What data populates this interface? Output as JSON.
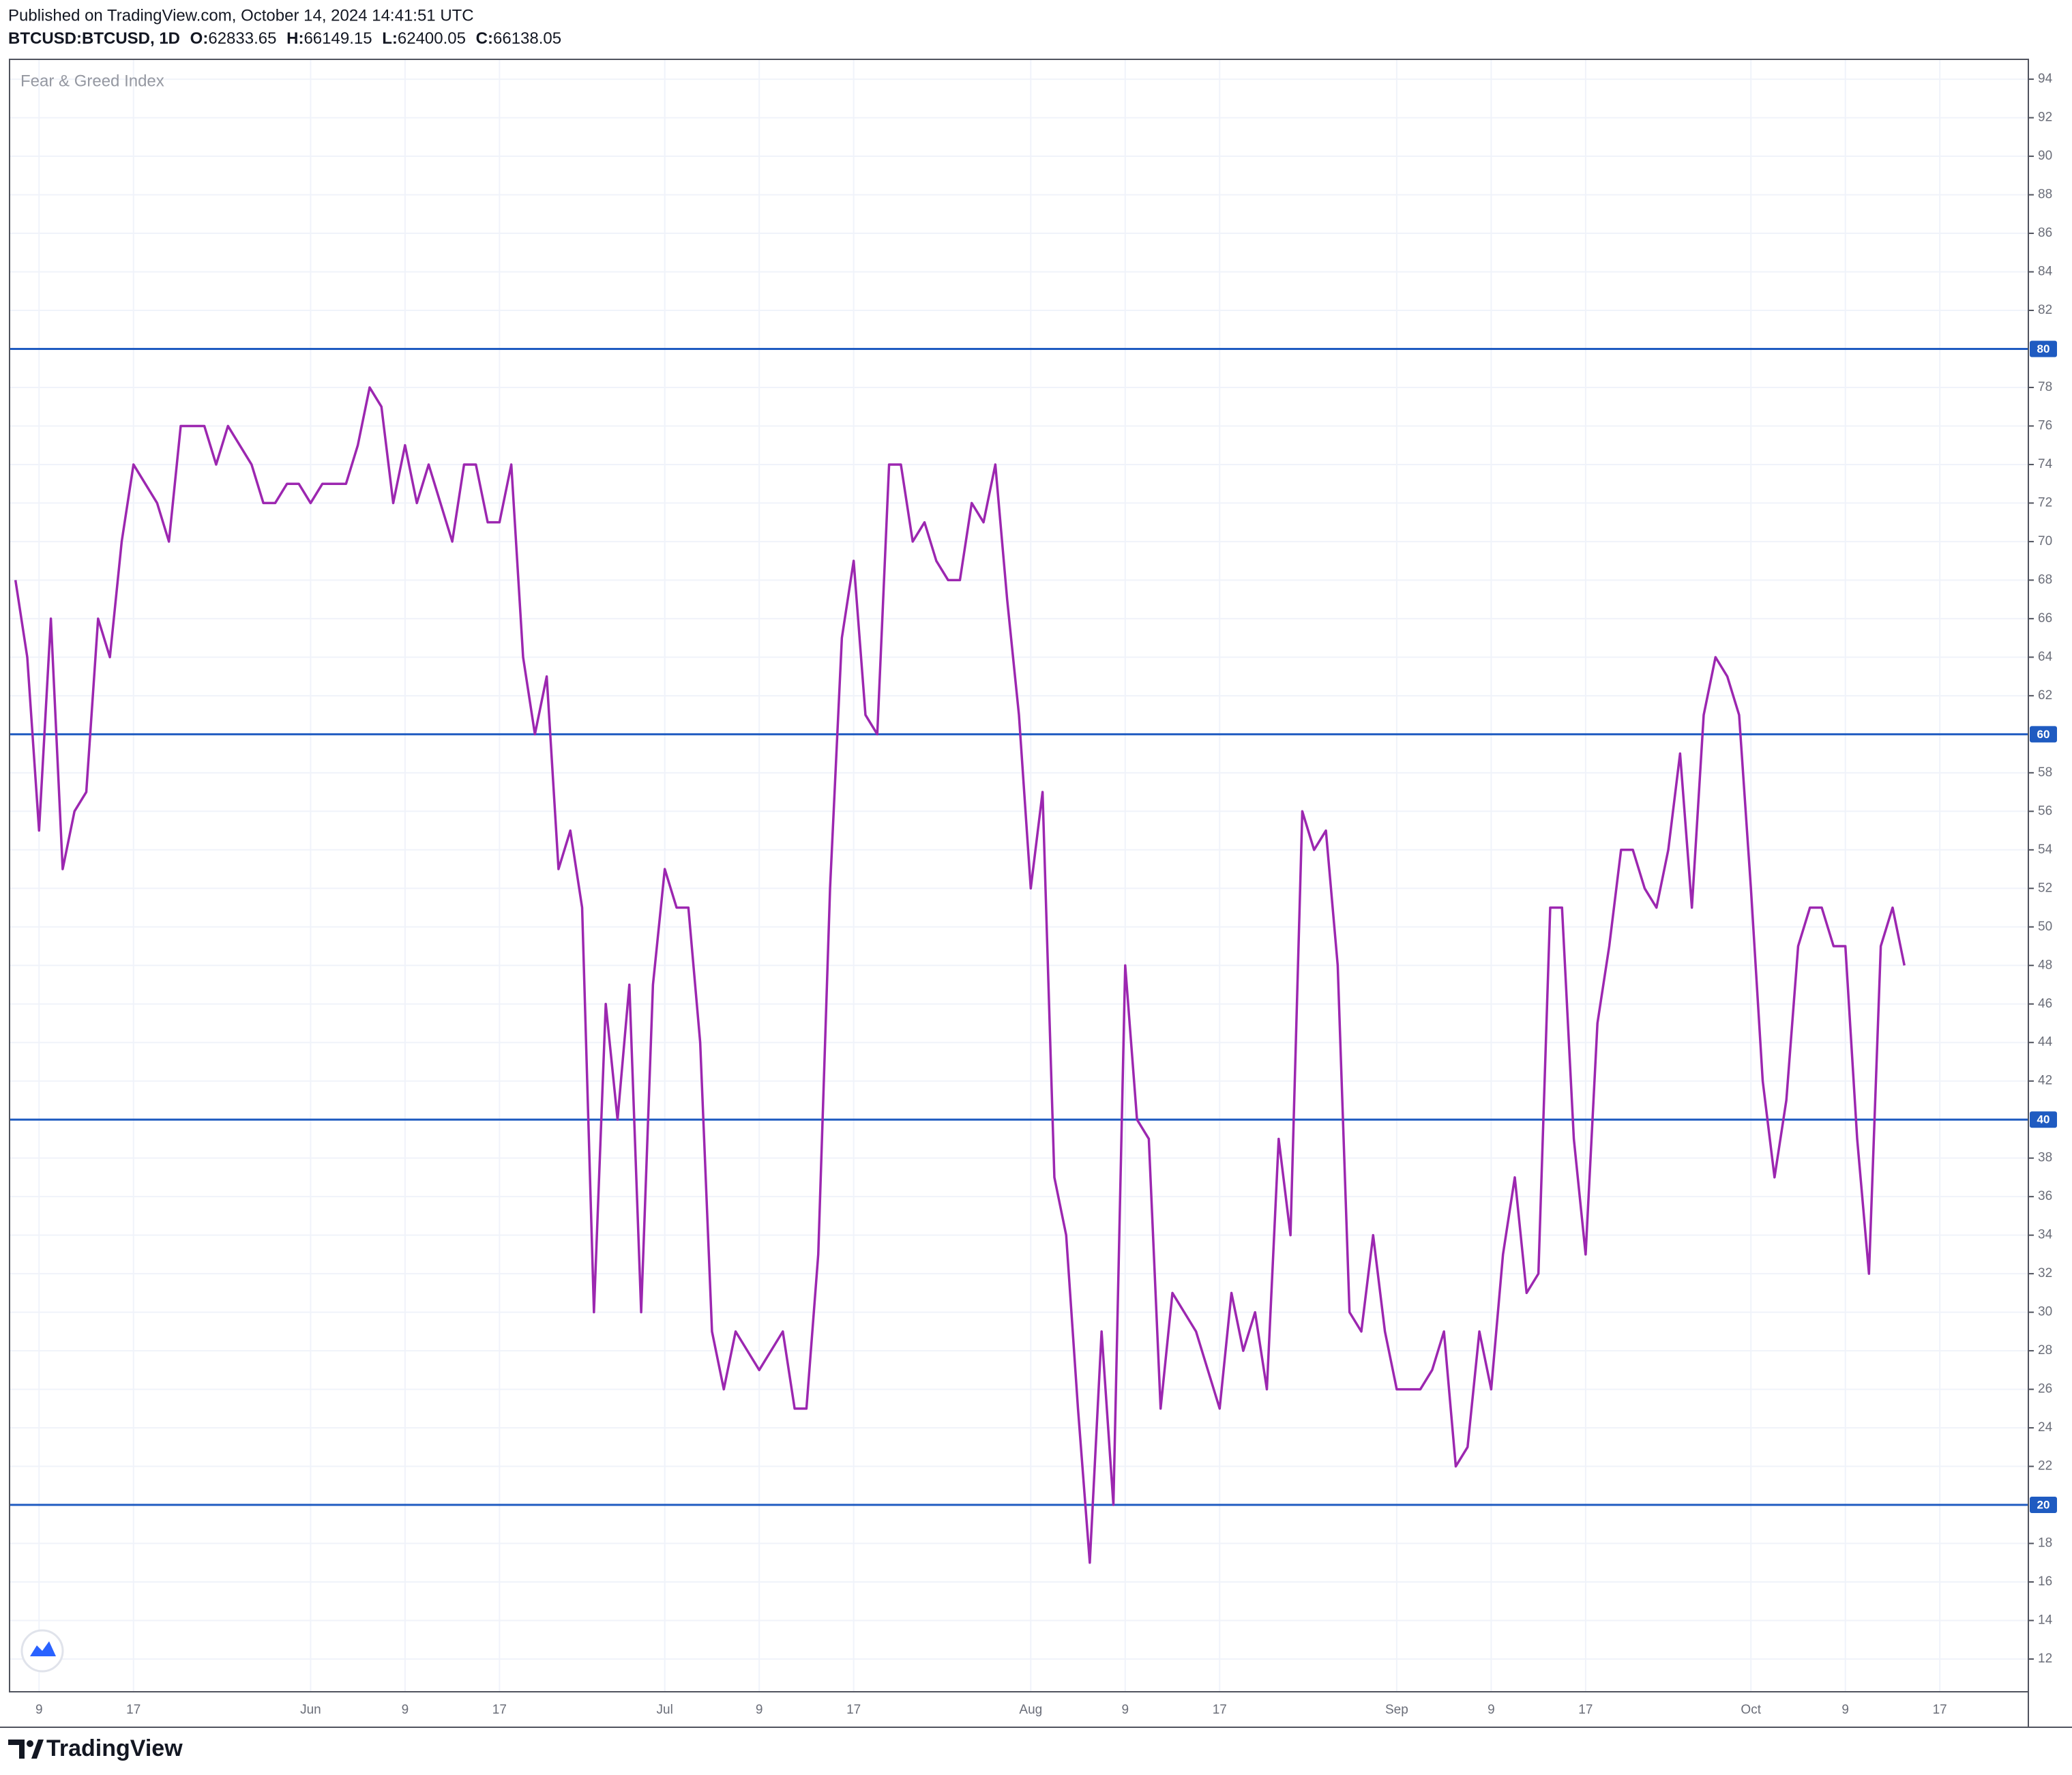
{
  "header": {
    "published": "Published on TradingView.com, October 14, 2024 14:41:51 UTC",
    "symbol": "BTCUSD:BTCUSD, 1D",
    "ohlc": [
      {
        "label": "O:",
        "value": "62833.65"
      },
      {
        "label": "H:",
        "value": "66149.15"
      },
      {
        "label": "L:",
        "value": "62400.05"
      },
      {
        "label": "C:",
        "value": "66138.05"
      }
    ]
  },
  "chart_data": {
    "type": "line",
    "title": "Fear & Greed Index",
    "color": "#9c27b0",
    "categories": [
      null,
      null,
      "9",
      null,
      null,
      null,
      null,
      null,
      null,
      null,
      "17",
      null,
      null,
      null,
      null,
      null,
      null,
      null,
      null,
      null,
      null,
      null,
      null,
      null,
      null,
      "Jun",
      null,
      null,
      null,
      null,
      null,
      null,
      null,
      "9",
      null,
      null,
      null,
      null,
      null,
      null,
      null,
      "17",
      null,
      null,
      null,
      null,
      null,
      null,
      null,
      null,
      null,
      null,
      null,
      null,
      null,
      "Jul",
      null,
      null,
      null,
      null,
      null,
      null,
      null,
      "9",
      null,
      null,
      null,
      null,
      null,
      null,
      null,
      "17",
      null,
      null,
      null,
      null,
      null,
      null,
      null,
      null,
      null,
      null,
      null,
      null,
      null,
      null,
      "Aug",
      null,
      null,
      null,
      null,
      null,
      null,
      null,
      "9",
      null,
      null,
      null,
      null,
      null,
      null,
      null,
      "17",
      null,
      null,
      null,
      null,
      null,
      null,
      null,
      null,
      null,
      null,
      null,
      null,
      null,
      null,
      "Sep",
      null,
      null,
      null,
      null,
      null,
      null,
      null,
      "9",
      null,
      null,
      null,
      null,
      null,
      null,
      null,
      "17",
      null,
      null,
      null,
      null,
      null,
      null,
      null,
      null,
      null,
      null,
      null,
      null,
      null,
      "Oct",
      null,
      null,
      null,
      null,
      null,
      null,
      null,
      "9",
      null,
      null,
      null,
      null,
      null,
      null,
      null,
      "17",
      null,
      null,
      null,
      null,
      null,
      null,
      null
    ],
    "values": [
      68,
      64,
      55,
      66,
      53,
      56,
      57,
      66,
      64,
      70,
      74,
      73,
      72,
      70,
      76,
      76,
      76,
      74,
      76,
      75,
      74,
      72,
      72,
      73,
      73,
      72,
      73,
      73,
      73,
      75,
      78,
      77,
      72,
      75,
      72,
      74,
      72,
      70,
      74,
      74,
      71,
      71,
      74,
      64,
      60,
      63,
      53,
      55,
      51,
      30,
      46,
      40,
      47,
      30,
      47,
      53,
      51,
      51,
      44,
      29,
      26,
      29,
      28,
      27,
      28,
      29,
      25,
      25,
      33,
      52,
      65,
      69,
      61,
      60,
      74,
      74,
      70,
      71,
      69,
      68,
      68,
      72,
      71,
      74,
      67,
      61,
      52,
      57,
      37,
      34,
      25,
      17,
      29,
      20,
      48,
      40,
      39,
      25,
      31,
      30,
      29,
      27,
      25,
      31,
      28,
      30,
      26,
      39,
      34,
      56,
      54,
      55,
      48,
      30,
      29,
      34,
      29,
      26,
      26,
      26,
      27,
      29,
      22,
      23,
      29,
      26,
      33,
      37,
      31,
      32,
      51,
      51,
      39,
      33,
      45,
      49,
      54,
      54,
      52,
      51,
      54,
      59,
      51,
      61,
      64,
      63,
      61,
      52,
      42,
      37,
      41,
      49,
      51,
      51,
      49,
      49,
      39,
      32,
      49,
      51,
      48,
      null,
      null,
      null,
      null,
      null,
      null,
      null,
      null,
      null,
      null
    ],
    "levels": [
      20,
      40,
      60,
      80
    ],
    "level_color": "#1f5bc1",
    "ylim": [
      10.3,
      95.03
    ],
    "yticks": [
      12,
      14,
      16,
      18,
      22,
      24,
      26,
      28,
      30,
      32,
      34,
      36,
      38,
      42,
      44,
      46,
      48,
      50,
      52,
      54,
      56,
      58,
      62,
      64,
      66,
      68,
      70,
      72,
      74,
      76,
      78,
      82,
      84,
      86,
      88,
      90,
      92,
      94
    ],
    "grid": true
  },
  "footer": {
    "brand": "TradingView"
  }
}
